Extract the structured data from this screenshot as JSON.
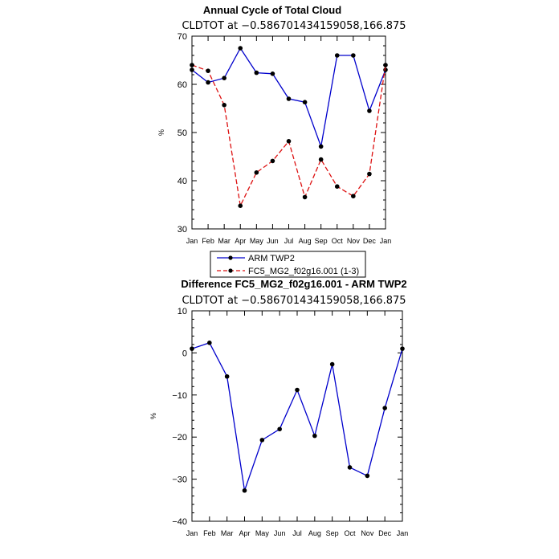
{
  "chart_data": [
    {
      "type": "line",
      "title": "Annual Cycle of Total Cloud",
      "subtitle": "CLDTOT at −0.586701434159058,166.875",
      "ylabel": "%",
      "ylim": [
        30,
        70
      ],
      "yticks": [
        "30",
        "40",
        "50",
        "60",
        "70"
      ],
      "categories": [
        "Jan",
        "Feb",
        "Mar",
        "Apr",
        "May",
        "Jun",
        "Jul",
        "Aug",
        "Sep",
        "Oct",
        "Nov",
        "Dec",
        "Jan"
      ],
      "legend_position": "bottom",
      "series": [
        {
          "name": "ARM TWP2",
          "color": "#0000cc",
          "style": "solid",
          "values": [
            63.0,
            60.4,
            61.3,
            67.5,
            62.4,
            62.2,
            57.0,
            56.3,
            47.1,
            66.0,
            66.0,
            54.5,
            63.0
          ]
        },
        {
          "name": "FC5_MG2_f02g16.001 (1-3)",
          "color": "#dd1111",
          "style": "dashed",
          "values": [
            64.0,
            62.8,
            55.7,
            34.8,
            41.7,
            44.1,
            48.2,
            36.6,
            44.4,
            38.8,
            36.8,
            41.4,
            64.0
          ]
        }
      ]
    },
    {
      "type": "line",
      "title": "Difference FC5_MG2_f02g16.001 - ARM TWP2",
      "subtitle": "CLDTOT at −0.586701434159058,166.875",
      "ylabel": "%",
      "ylim": [
        -40,
        10
      ],
      "yticks": [
        "−40",
        "−30",
        "−20",
        "−10",
        "0",
        "10"
      ],
      "categories": [
        "Jan",
        "Feb",
        "Mar",
        "Apr",
        "May",
        "Jun",
        "Jul",
        "Aug",
        "Sep",
        "Oct",
        "Nov",
        "Dec",
        "Jan"
      ],
      "series": [
        {
          "color": "#0000cc",
          "style": "solid",
          "values": [
            1.0,
            2.4,
            -5.6,
            -32.7,
            -20.7,
            -18.1,
            -8.8,
            -19.7,
            -2.7,
            -27.2,
            -29.2,
            -13.1,
            1.0
          ]
        }
      ]
    }
  ]
}
